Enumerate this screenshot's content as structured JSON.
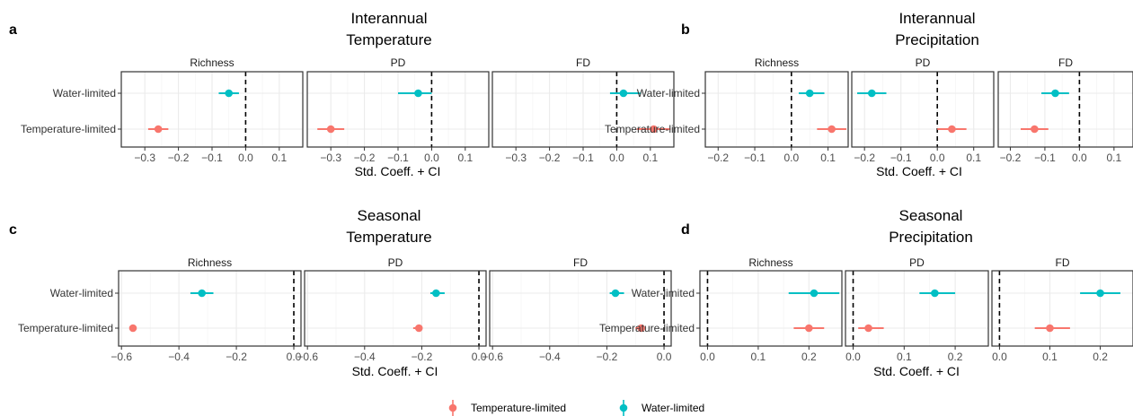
{
  "legend": {
    "position": "bottom",
    "items": [
      {
        "label": "Temperature-limited",
        "color": "#F8766D"
      },
      {
        "label": "Water-limited",
        "color": "#00BFC4"
      }
    ]
  },
  "colors": {
    "temperature_limited": "#F8766D",
    "water_limited": "#00BFC4",
    "grid": "#EBEBEB",
    "reference_line": "#000000"
  },
  "chart_data": [
    {
      "letter": "a",
      "type": "scatter",
      "title_lines": [
        "Interannual",
        "Temperature"
      ],
      "xlabel": "Std. Coeff. + CI",
      "ylabel": "",
      "categories": [
        "Water-limited",
        "Temperature-limited"
      ],
      "xlim": [
        -0.37,
        0.17
      ],
      "xticks": [
        -0.3,
        -0.2,
        -0.1,
        0.0,
        0.1
      ],
      "tick_labels": [
        "−0.3",
        "−0.2",
        "−0.1",
        "0.0",
        "0.1"
      ],
      "reference_x": 0,
      "grid": true,
      "facets": [
        {
          "name": "Richness",
          "points": [
            {
              "group": "Water-limited",
              "estimate": -0.05,
              "low": -0.08,
              "high": -0.02
            },
            {
              "group": "Temperature-limited",
              "estimate": -0.26,
              "low": -0.29,
              "high": -0.23
            }
          ]
        },
        {
          "name": "PD",
          "points": [
            {
              "group": "Water-limited",
              "estimate": -0.04,
              "low": -0.1,
              "high": 0.0
            },
            {
              "group": "Temperature-limited",
              "estimate": -0.3,
              "low": -0.34,
              "high": -0.26
            }
          ]
        },
        {
          "name": "FD",
          "points": [
            {
              "group": "Water-limited",
              "estimate": 0.02,
              "low": -0.02,
              "high": 0.07
            },
            {
              "group": "Temperature-limited",
              "estimate": 0.11,
              "low": 0.06,
              "high": 0.16
            }
          ]
        }
      ]
    },
    {
      "letter": "b",
      "type": "scatter",
      "title_lines": [
        "Interannual",
        "Precipitation"
      ],
      "xlabel": "Std. Coeff. + CI",
      "ylabel": "",
      "categories": [
        "Water-limited",
        "Temperature-limited"
      ],
      "xlim": [
        -0.235,
        0.155
      ],
      "xticks": [
        -0.2,
        -0.1,
        0.0,
        0.1
      ],
      "tick_labels": [
        "−0.2",
        "−0.1",
        "0.0",
        "0.1"
      ],
      "reference_x": 0,
      "grid": true,
      "facets": [
        {
          "name": "Richness",
          "points": [
            {
              "group": "Water-limited",
              "estimate": 0.05,
              "low": 0.02,
              "high": 0.09
            },
            {
              "group": "Temperature-limited",
              "estimate": 0.11,
              "low": 0.07,
              "high": 0.15
            }
          ]
        },
        {
          "name": "PD",
          "points": [
            {
              "group": "Water-limited",
              "estimate": -0.18,
              "low": -0.22,
              "high": -0.14
            },
            {
              "group": "Temperature-limited",
              "estimate": 0.04,
              "low": 0.0,
              "high": 0.08
            }
          ]
        },
        {
          "name": "FD",
          "points": [
            {
              "group": "Water-limited",
              "estimate": -0.07,
              "low": -0.11,
              "high": -0.03
            },
            {
              "group": "Temperature-limited",
              "estimate": -0.13,
              "low": -0.17,
              "high": -0.09
            }
          ]
        }
      ]
    },
    {
      "letter": "c",
      "type": "scatter",
      "title_lines": [
        "Seasonal",
        "Temperature"
      ],
      "xlabel": "Std. Coeff. + CI",
      "ylabel": "",
      "categories": [
        "Water-limited",
        "Temperature-limited"
      ],
      "xlim": [
        -0.61,
        0.025
      ],
      "xticks": [
        -0.6,
        -0.4,
        -0.2,
        0.0
      ],
      "tick_labels": [
        "−0.6",
        "−0.4",
        "−0.2",
        "0.0"
      ],
      "reference_x": 0,
      "grid": true,
      "facets": [
        {
          "name": "Richness",
          "points": [
            {
              "group": "Water-limited",
              "estimate": -0.32,
              "low": -0.36,
              "high": -0.28
            },
            {
              "group": "Temperature-limited",
              "estimate": -0.56,
              "low": -0.57,
              "high": -0.55
            }
          ]
        },
        {
          "name": "PD",
          "points": [
            {
              "group": "Water-limited",
              "estimate": -0.15,
              "low": -0.17,
              "high": -0.12
            },
            {
              "group": "Temperature-limited",
              "estimate": -0.21,
              "low": -0.23,
              "high": -0.2
            }
          ]
        },
        {
          "name": "FD",
          "points": [
            {
              "group": "Water-limited",
              "estimate": -0.17,
              "low": -0.19,
              "high": -0.14
            },
            {
              "group": "Temperature-limited",
              "estimate": -0.08,
              "low": -0.1,
              "high": -0.07
            }
          ]
        }
      ]
    },
    {
      "letter": "d",
      "type": "scatter",
      "title_lines": [
        "Seasonal",
        "Precipitation"
      ],
      "xlabel": "Std. Coeff. + CI",
      "ylabel": "",
      "categories": [
        "Water-limited",
        "Temperature-limited"
      ],
      "xlim": [
        -0.015,
        0.265
      ],
      "xticks": [
        0.0,
        0.1,
        0.2
      ],
      "tick_labels": [
        "0.0",
        "0.1",
        "0.2"
      ],
      "reference_x": 0,
      "grid": true,
      "facets": [
        {
          "name": "Richness",
          "points": [
            {
              "group": "Water-limited",
              "estimate": 0.21,
              "low": 0.16,
              "high": 0.26
            },
            {
              "group": "Temperature-limited",
              "estimate": 0.2,
              "low": 0.17,
              "high": 0.23
            }
          ]
        },
        {
          "name": "PD",
          "points": [
            {
              "group": "Water-limited",
              "estimate": 0.16,
              "low": 0.13,
              "high": 0.2
            },
            {
              "group": "Temperature-limited",
              "estimate": 0.03,
              "low": 0.01,
              "high": 0.06
            }
          ]
        },
        {
          "name": "FD",
          "points": [
            {
              "group": "Water-limited",
              "estimate": 0.2,
              "low": 0.16,
              "high": 0.24
            },
            {
              "group": "Temperature-limited",
              "estimate": 0.1,
              "low": 0.07,
              "high": 0.14
            }
          ]
        }
      ]
    }
  ]
}
